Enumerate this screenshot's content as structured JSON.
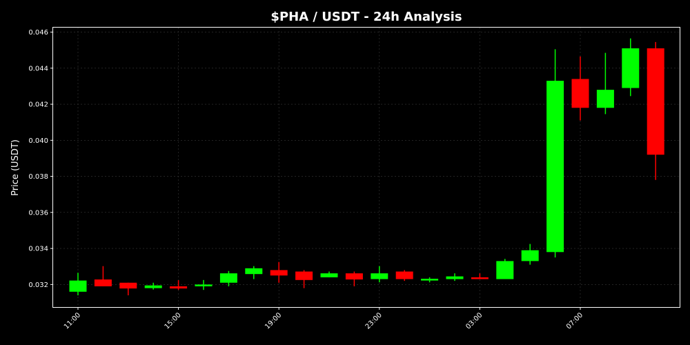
{
  "chart_data": {
    "type": "candlestick",
    "title": "$PHA / USDT - 24h Analysis",
    "xlabel": "",
    "ylabel": "Price (USDT)",
    "ylim": [
      0.03075,
      0.04625
    ],
    "y_ticks": [
      "0.032",
      "0.034",
      "0.036",
      "0.038",
      "0.040",
      "0.042",
      "0.044",
      "0.046"
    ],
    "x_ticks": [
      {
        "label": "11:00",
        "index": 0
      },
      {
        "label": "15:00",
        "index": 4
      },
      {
        "label": "19:00",
        "index": 8
      },
      {
        "label": "23:00",
        "index": 12
      },
      {
        "label": "03:00",
        "index": 16
      },
      {
        "label": "07:00",
        "index": 20
      }
    ],
    "grid": true,
    "up_color": "#00ff00",
    "down_color": "#ff0000",
    "candles": [
      {
        "open": 0.0316,
        "high": 0.03265,
        "low": 0.0314,
        "close": 0.03222
      },
      {
        "open": 0.03228,
        "high": 0.03302,
        "low": 0.0319,
        "close": 0.0319
      },
      {
        "open": 0.0321,
        "high": 0.0321,
        "low": 0.0314,
        "close": 0.03178
      },
      {
        "open": 0.0318,
        "high": 0.0321,
        "low": 0.03172,
        "close": 0.03195
      },
      {
        "open": 0.0319,
        "high": 0.03224,
        "low": 0.0317,
        "close": 0.03178
      },
      {
        "open": 0.0319,
        "high": 0.03225,
        "low": 0.0317,
        "close": 0.032
      },
      {
        "open": 0.0321,
        "high": 0.03275,
        "low": 0.0319,
        "close": 0.03262
      },
      {
        "open": 0.03258,
        "high": 0.03302,
        "low": 0.0323,
        "close": 0.0329
      },
      {
        "open": 0.0328,
        "high": 0.03325,
        "low": 0.0321,
        "close": 0.0325
      },
      {
        "open": 0.03272,
        "high": 0.0328,
        "low": 0.0318,
        "close": 0.03225
      },
      {
        "open": 0.0324,
        "high": 0.03272,
        "low": 0.0324,
        "close": 0.03262
      },
      {
        "open": 0.03262,
        "high": 0.03272,
        "low": 0.0319,
        "close": 0.03228
      },
      {
        "open": 0.0323,
        "high": 0.03302,
        "low": 0.03212,
        "close": 0.03262
      },
      {
        "open": 0.03272,
        "high": 0.0328,
        "low": 0.0322,
        "close": 0.0323
      },
      {
        "open": 0.03222,
        "high": 0.0324,
        "low": 0.03212,
        "close": 0.03232
      },
      {
        "open": 0.0323,
        "high": 0.03262,
        "low": 0.0322,
        "close": 0.03245
      },
      {
        "open": 0.0324,
        "high": 0.03262,
        "low": 0.0323,
        "close": 0.0323
      },
      {
        "open": 0.0323,
        "high": 0.03342,
        "low": 0.0323,
        "close": 0.0333
      },
      {
        "open": 0.0333,
        "high": 0.03425,
        "low": 0.0331,
        "close": 0.0339
      },
      {
        "open": 0.0338,
        "high": 0.04505,
        "low": 0.0335,
        "close": 0.0433
      },
      {
        "open": 0.0434,
        "high": 0.04465,
        "low": 0.0411,
        "close": 0.0418
      },
      {
        "open": 0.0418,
        "high": 0.04485,
        "low": 0.04145,
        "close": 0.0428
      },
      {
        "open": 0.0429,
        "high": 0.04565,
        "low": 0.04245,
        "close": 0.0451
      },
      {
        "open": 0.0451,
        "high": 0.04545,
        "low": 0.0378,
        "close": 0.0392
      }
    ]
  }
}
